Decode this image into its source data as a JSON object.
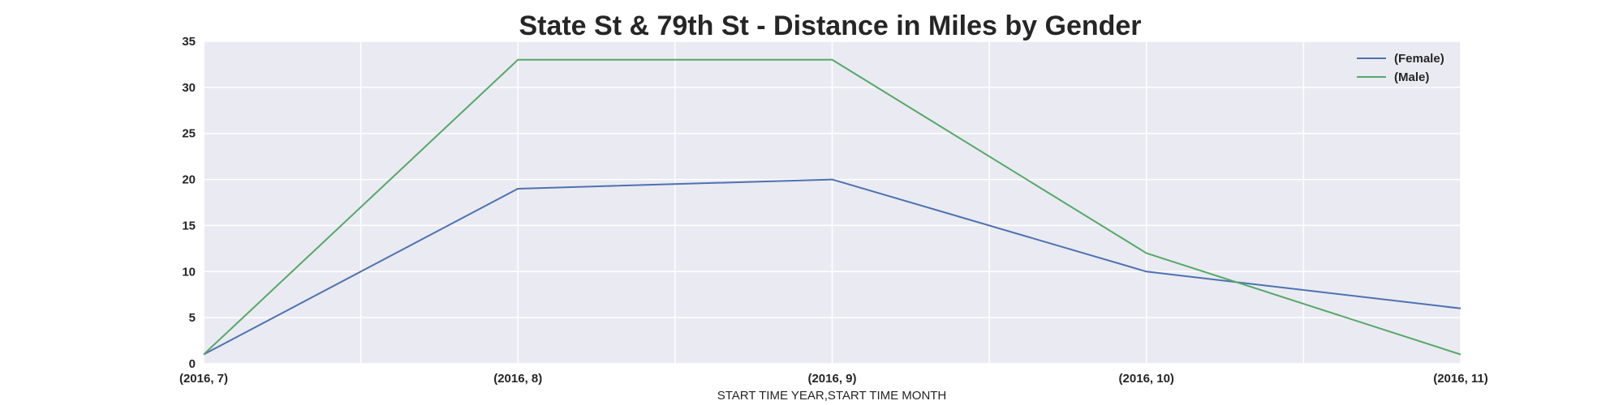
{
  "chart_data": {
    "type": "line",
    "title": "State St & 79th St - Distance in Miles by Gender",
    "xlabel": "START TIME YEAR,START TIME MONTH",
    "ylabel": "",
    "categories": [
      "(2016, 7)",
      "(2016, 8)",
      "(2016, 9)",
      "(2016, 10)",
      "(2016, 11)"
    ],
    "ylim": [
      0,
      35
    ],
    "yticks": [
      0,
      5,
      10,
      15,
      20,
      25,
      30,
      35
    ],
    "grid": true,
    "legend_position": "top-right",
    "series": [
      {
        "name": "(Female)",
        "color": "#4c72b0",
        "values": [
          1,
          19,
          20,
          10,
          6
        ]
      },
      {
        "name": "(Male)",
        "color": "#55a868",
        "values": [
          1,
          33,
          33,
          12,
          1
        ]
      }
    ]
  }
}
